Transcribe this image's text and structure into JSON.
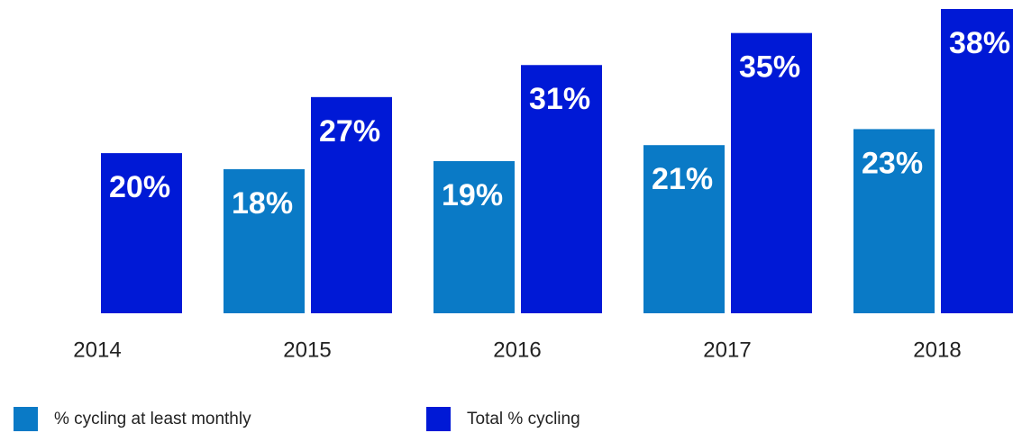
{
  "chart_data": {
    "type": "bar",
    "categories": [
      "2014",
      "2015",
      "2016",
      "2017",
      "2018"
    ],
    "series": [
      {
        "name": "% cycling at least monthly",
        "color": "#0a7ac6",
        "values": [
          null,
          18,
          19,
          21,
          23
        ],
        "value_labels": [
          null,
          "18%",
          "19%",
          "21%",
          "23%"
        ]
      },
      {
        "name": "Total % cycling",
        "color": "#0019d6",
        "values": [
          20,
          27,
          31,
          35,
          38
        ],
        "value_labels": [
          "20%",
          "27%",
          "31%",
          "35%",
          "38%"
        ]
      }
    ],
    "ylim": [
      0,
      38
    ]
  }
}
